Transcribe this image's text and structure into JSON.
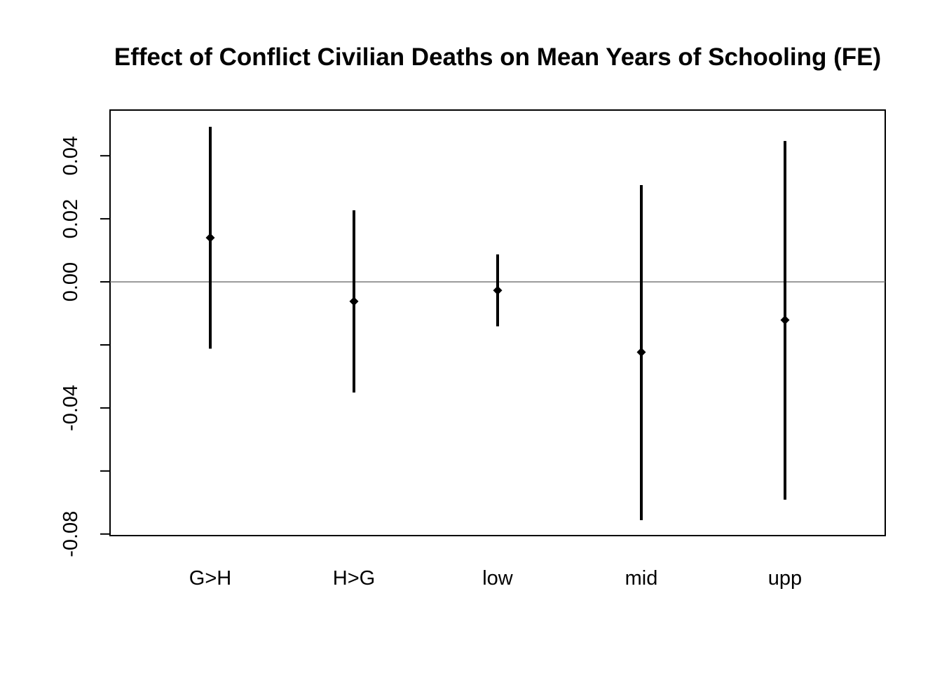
{
  "chart_data": {
    "type": "scatter",
    "title": "Effect of Conflict Civilian Deaths on Mean Years of Schooling (FE)",
    "xlabel": "",
    "ylabel": "",
    "categories": [
      "G>H",
      "H>G",
      "low",
      "mid",
      "upp"
    ],
    "estimates": [
      0.014,
      -0.0062,
      -0.0027,
      -0.0223,
      -0.0121
    ],
    "lower": [
      -0.0212,
      -0.0351,
      -0.0141,
      -0.0756,
      -0.0691
    ],
    "upper": [
      0.0492,
      0.0227,
      0.0087,
      0.0307,
      0.0447
    ],
    "ylim": [
      -0.0805,
      0.0545
    ],
    "y_ticks": [
      0.04,
      0.02,
      0.0,
      -0.02,
      -0.04,
      -0.06,
      -0.08
    ],
    "y_tick_labels": [
      "0.04",
      "0.02",
      "0.00",
      "",
      "-0.04",
      "",
      "-0.08"
    ],
    "reference_line": 0.0,
    "grid": false,
    "legend": "none",
    "colors": {
      "interval": "#000000",
      "point": "#000000",
      "reference_line": "#6e6e6e",
      "frame": "#000000"
    }
  }
}
